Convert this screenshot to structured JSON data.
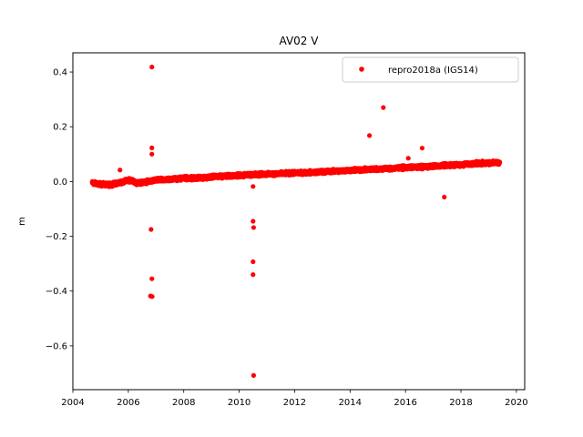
{
  "chart_data": {
    "type": "scatter",
    "title": "AV02 V",
    "xlabel": "",
    "ylabel": "m",
    "xlim": [
      2004.0,
      2020.3
    ],
    "ylim": [
      -0.76,
      0.47
    ],
    "xticks": [
      2004,
      2006,
      2008,
      2010,
      2012,
      2014,
      2016,
      2018,
      2020
    ],
    "xtick_labels": [
      "2004",
      "2006",
      "2008",
      "2010",
      "2012",
      "2014",
      "2016",
      "2018",
      "2020"
    ],
    "yticks": [
      0.4,
      0.2,
      0.0,
      -0.2,
      -0.4,
      -0.6
    ],
    "ytick_labels": [
      "0.4",
      "0.2",
      "0.0",
      "−0.2",
      "−0.4",
      "−0.6"
    ],
    "grid": false,
    "legend": "top-right",
    "series": [
      {
        "name": "repro2018a (IGS14)",
        "color": "#ff0000",
        "marker": "circle",
        "trend": {
          "points": [
            [
              2004.7,
              -0.005
            ],
            [
              2005.0,
              -0.01
            ],
            [
              2005.3,
              -0.012
            ],
            [
              2005.6,
              -0.006
            ],
            [
              2005.9,
              0.002
            ],
            [
              2006.1,
              0.006
            ],
            [
              2006.3,
              -0.006
            ],
            [
              2006.6,
              -0.002
            ],
            [
              2007.0,
              0.005
            ],
            [
              2007.5,
              0.008
            ],
            [
              2008.0,
              0.012
            ],
            [
              2008.5,
              0.013
            ],
            [
              2009.0,
              0.017
            ],
            [
              2009.5,
              0.02
            ],
            [
              2010.0,
              0.022
            ],
            [
              2010.5,
              0.025
            ],
            [
              2011.0,
              0.027
            ],
            [
              2011.5,
              0.029
            ],
            [
              2012.0,
              0.031
            ],
            [
              2012.5,
              0.033
            ],
            [
              2013.0,
              0.036
            ],
            [
              2013.5,
              0.038
            ],
            [
              2014.0,
              0.041
            ],
            [
              2014.5,
              0.043
            ],
            [
              2015.0,
              0.046
            ],
            [
              2015.5,
              0.048
            ],
            [
              2016.0,
              0.051
            ],
            [
              2016.5,
              0.053
            ],
            [
              2017.0,
              0.056
            ],
            [
              2017.5,
              0.059
            ],
            [
              2018.0,
              0.062
            ],
            [
              2018.5,
              0.065
            ],
            [
              2019.0,
              0.068
            ],
            [
              2019.4,
              0.07
            ]
          ]
        },
        "outliers": [
          {
            "x": 2006.85,
            "y": 0.418
          },
          {
            "x": 2006.85,
            "y": 0.123
          },
          {
            "x": 2006.85,
            "y": 0.1
          },
          {
            "x": 2006.82,
            "y": -0.175
          },
          {
            "x": 2006.85,
            "y": -0.355
          },
          {
            "x": 2006.8,
            "y": -0.418
          },
          {
            "x": 2006.86,
            "y": -0.42
          },
          {
            "x": 2005.7,
            "y": 0.042
          },
          {
            "x": 2010.5,
            "y": -0.018
          },
          {
            "x": 2010.5,
            "y": -0.145
          },
          {
            "x": 2010.52,
            "y": -0.168
          },
          {
            "x": 2010.5,
            "y": -0.293
          },
          {
            "x": 2010.5,
            "y": -0.34
          },
          {
            "x": 2010.52,
            "y": -0.708
          },
          {
            "x": 2014.7,
            "y": 0.168
          },
          {
            "x": 2015.2,
            "y": 0.27
          },
          {
            "x": 2016.1,
            "y": 0.085
          },
          {
            "x": 2016.6,
            "y": 0.122
          },
          {
            "x": 2017.4,
            "y": -0.057
          }
        ]
      }
    ]
  }
}
